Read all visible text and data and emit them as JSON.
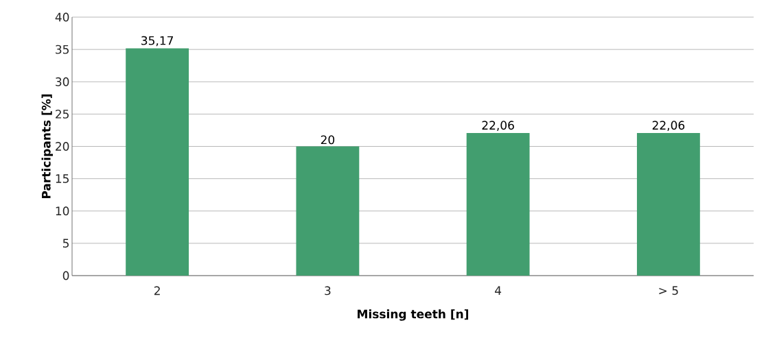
{
  "chart_data": {
    "type": "bar",
    "xlabel": "Missing teeth [n]",
    "ylabel": "Participants [%]",
    "categories": [
      "2",
      "3",
      "4",
      "> 5"
    ],
    "values": [
      35.17,
      20,
      22.06,
      22.06
    ],
    "value_labels": [
      "35,17",
      "20",
      "22,06",
      "22,06"
    ],
    "color": "#429e6f",
    "ylim": [
      0,
      40
    ],
    "yticks": [
      0,
      5,
      10,
      15,
      20,
      25,
      30,
      35,
      40
    ],
    "grid": "y"
  }
}
